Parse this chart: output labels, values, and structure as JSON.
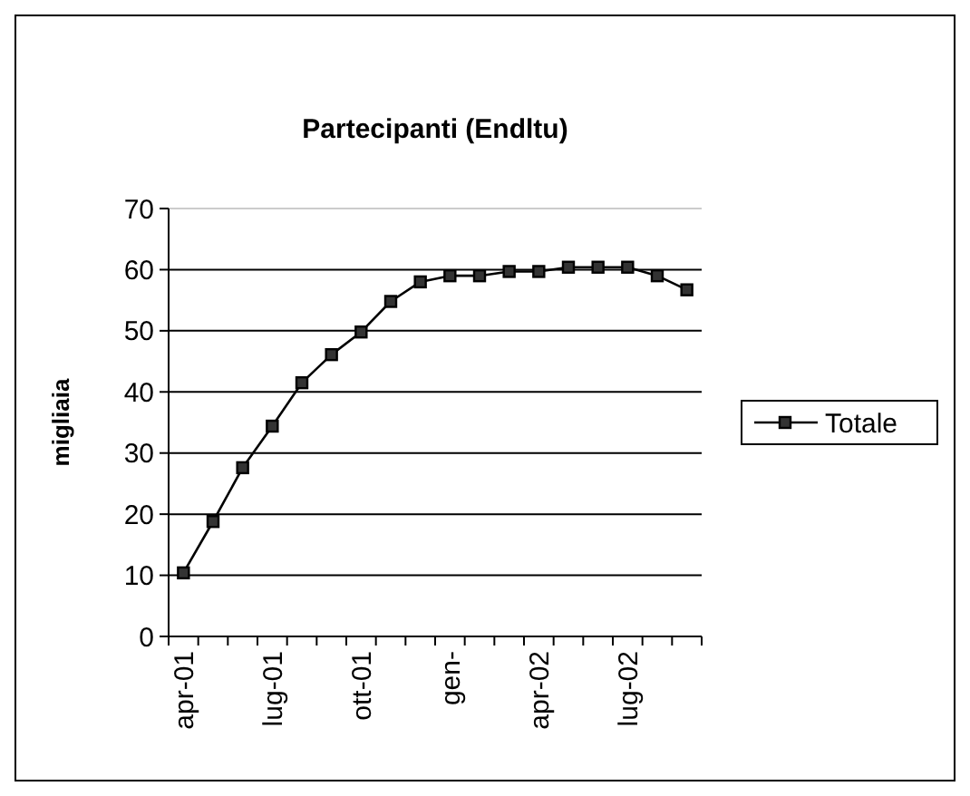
{
  "chart_data": {
    "type": "line",
    "title": "Partecipanti (Endltu)",
    "ylabel": "migliaia",
    "categories": [
      "apr-01",
      null,
      null,
      "lug-01",
      null,
      null,
      "ott-01",
      null,
      null,
      "gen-",
      null,
      null,
      "apr-02",
      null,
      null,
      "lug-02",
      null,
      null
    ],
    "series": [
      {
        "name": "Totale",
        "color": "#000000",
        "values": [
          10.4,
          18.8,
          27.6,
          34.4,
          41.5,
          46.1,
          49.8,
          54.8,
          58,
          59,
          59,
          59.7,
          59.7,
          60.4,
          60.4,
          60.4,
          59,
          56.7
        ]
      }
    ],
    "ylim": [
      0,
      70
    ],
    "yticks": [
      0,
      10,
      20,
      30,
      40,
      50,
      60,
      70
    ],
    "grid": "y",
    "legend": "right",
    "marker": "square",
    "line_style": "solid"
  }
}
